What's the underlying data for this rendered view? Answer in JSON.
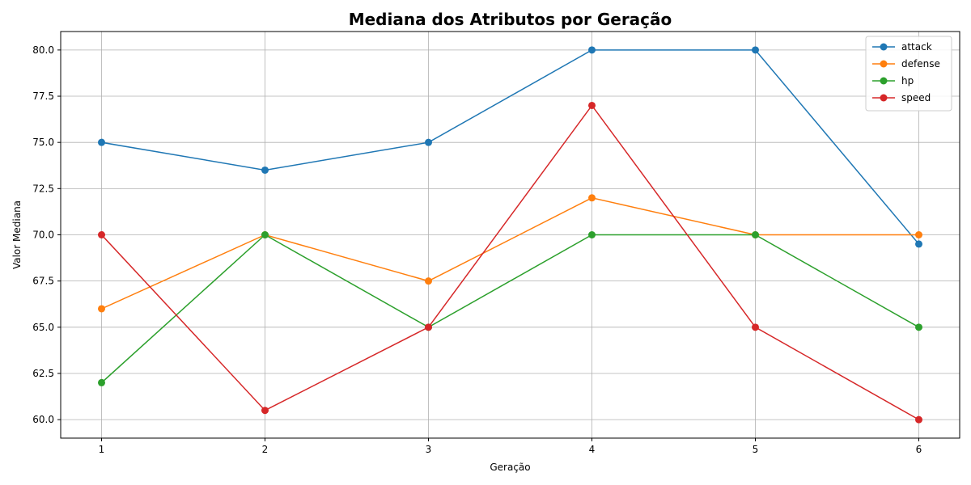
{
  "chart_data": {
    "type": "line",
    "title": "Mediana dos Atributos por Geração",
    "xlabel": "Geração",
    "ylabel": "Valor Mediana",
    "x": [
      1,
      2,
      3,
      4,
      5,
      6
    ],
    "xticks": [
      "1",
      "2",
      "3",
      "4",
      "5",
      "6"
    ],
    "ylim": [
      59.0,
      81.0
    ],
    "yticks": [
      "60.0",
      "62.5",
      "65.0",
      "67.5",
      "70.0",
      "72.5",
      "75.0",
      "77.5",
      "80.0"
    ],
    "grid": true,
    "legend_position": "top-right",
    "series": [
      {
        "name": "attack",
        "color": "#1f77b4",
        "values": [
          75.0,
          73.5,
          75.0,
          80.0,
          80.0,
          69.5
        ]
      },
      {
        "name": "defense",
        "color": "#ff7f0e",
        "values": [
          66.0,
          70.0,
          67.5,
          72.0,
          70.0,
          70.0
        ]
      },
      {
        "name": "hp",
        "color": "#2ca02c",
        "values": [
          62.0,
          70.0,
          65.0,
          70.0,
          70.0,
          65.0
        ]
      },
      {
        "name": "speed",
        "color": "#d62728",
        "values": [
          70.0,
          60.5,
          65.0,
          77.0,
          65.0,
          60.0
        ]
      }
    ]
  }
}
